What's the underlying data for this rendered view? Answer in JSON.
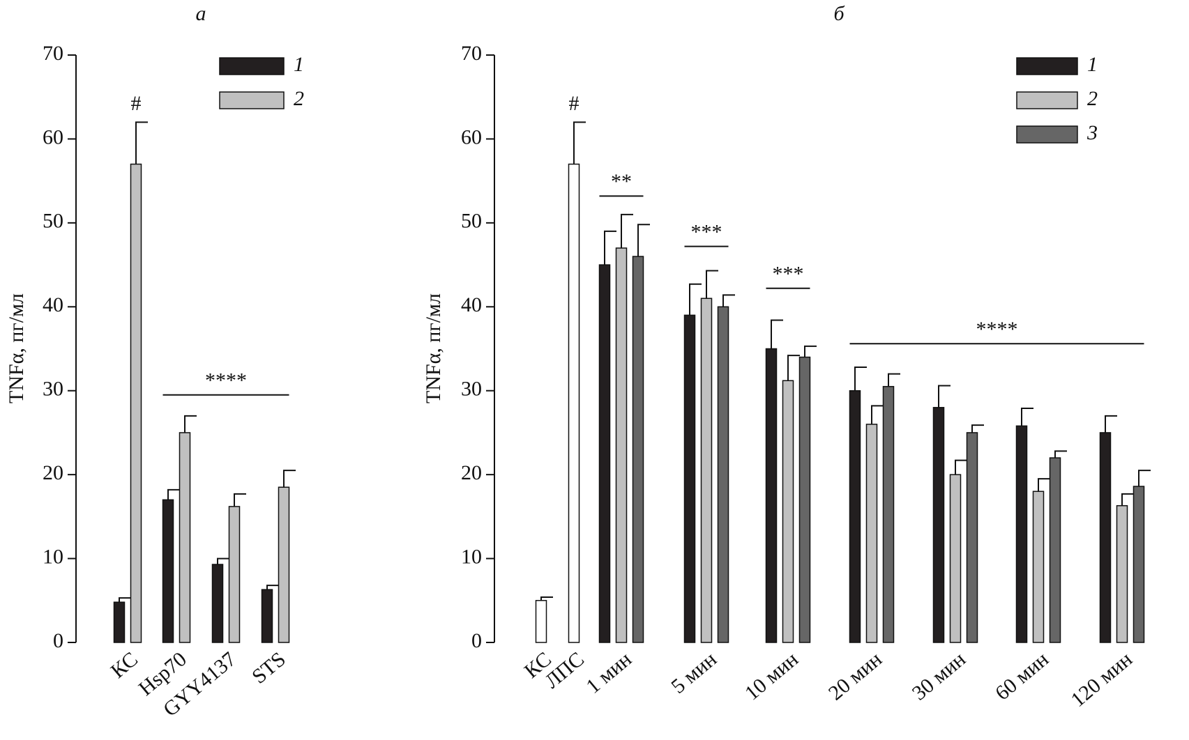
{
  "chart_data": [
    {
      "type": "bar",
      "title": "а",
      "y_label": "TNFα, пг/мл",
      "categories": [
        "КС",
        "Hsp70",
        "GYY4137",
        "STS"
      ],
      "series": [
        {
          "name": "1",
          "color": "#231f20",
          "values": [
            4.8,
            17,
            9.3,
            6.3
          ],
          "error": [
            0.5,
            1.2,
            0.7,
            0.5
          ]
        },
        {
          "name": "2",
          "color": "#c0c0c0",
          "values": [
            57,
            25,
            16.2,
            18.5
          ],
          "error": [
            5,
            2,
            1.5,
            2
          ]
        }
      ],
      "ylim": [
        0,
        70
      ],
      "yticks": [
        0,
        10,
        20,
        30,
        40,
        50,
        60,
        70
      ],
      "annotations": [
        {
          "text": "#",
          "series": 1,
          "category": 0
        }
      ],
      "brackets": [
        {
          "text": "****",
          "from": 1,
          "to": 3,
          "y": 29.5
        }
      ]
    },
    {
      "type": "bar",
      "title": "б",
      "y_label": "TNFα, пг/мл",
      "categories": [
        "КС",
        "ЛПС",
        "1 мин",
        "5 мин",
        "10 мин",
        "20 мин",
        "30 мин",
        "60 мин",
        "120 мин"
      ],
      "series": [
        {
          "color": "#ffffff",
          "values": [
            5,
            57,
            null,
            null,
            null,
            null,
            null,
            null,
            null
          ],
          "error": [
            0.4,
            5,
            null,
            null,
            null,
            null,
            null,
            null,
            null
          ]
        },
        {
          "name": "1",
          "color": "#231f20",
          "values": [
            null,
            null,
            45,
            39,
            35,
            30,
            28,
            25.8,
            25
          ],
          "error": [
            null,
            null,
            4,
            3.7,
            3.4,
            2.8,
            2.6,
            2.1,
            2
          ]
        },
        {
          "name": "2",
          "color": "#c0c0c0",
          "values": [
            null,
            null,
            47,
            41,
            31.2,
            26,
            20,
            18,
            16.3
          ],
          "error": [
            null,
            null,
            4,
            3.3,
            3,
            2.2,
            1.7,
            1.5,
            1.4
          ]
        },
        {
          "name": "3",
          "color": "#666666",
          "values": [
            null,
            null,
            46,
            40,
            34,
            30.5,
            25,
            22,
            18.6
          ],
          "error": [
            null,
            null,
            3.8,
            1.4,
            1.3,
            1.5,
            0.9,
            0.8,
            1.9
          ]
        }
      ],
      "ylim": [
        0,
        70
      ],
      "yticks": [
        0,
        10,
        20,
        30,
        40,
        50,
        60,
        70
      ],
      "annotations": [
        {
          "text": "#",
          "series": 0,
          "category": 1
        }
      ],
      "brackets": [
        {
          "text": "**",
          "from": 2,
          "to": 2,
          "y": 53.2
        },
        {
          "text": "***",
          "from": 3,
          "to": 3,
          "y": 47.2
        },
        {
          "text": "***",
          "from": 4,
          "to": 4,
          "y": 42.2
        },
        {
          "text": "****",
          "from": 5,
          "to": 8,
          "y": 35.6
        }
      ]
    }
  ]
}
